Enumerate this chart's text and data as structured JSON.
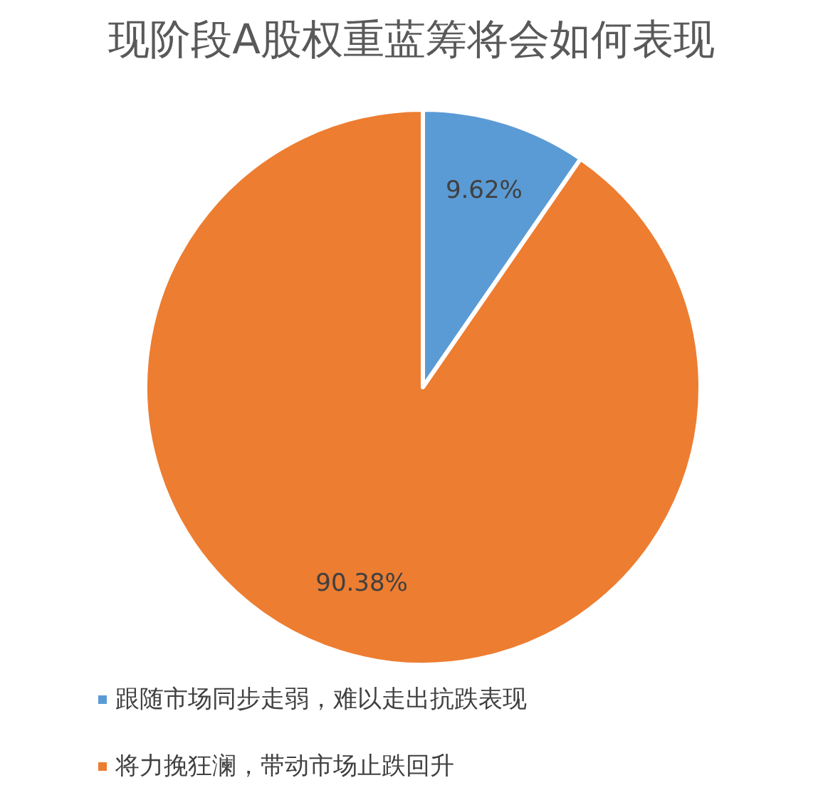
{
  "chart_data": {
    "type": "pie",
    "title": "现阶段A股权重蓝筹将会如何表现",
    "categories": [
      "跟随市场同步走弱，难以走出抗跌表现",
      "将力挽狂澜，带动市场止跌回升"
    ],
    "values": [
      9.62,
      90.38
    ],
    "colors": [
      "#5b9bd5",
      "#ed7d31"
    ],
    "value_labels": [
      "9.62%",
      "90.38%"
    ],
    "legend": "bottom"
  }
}
